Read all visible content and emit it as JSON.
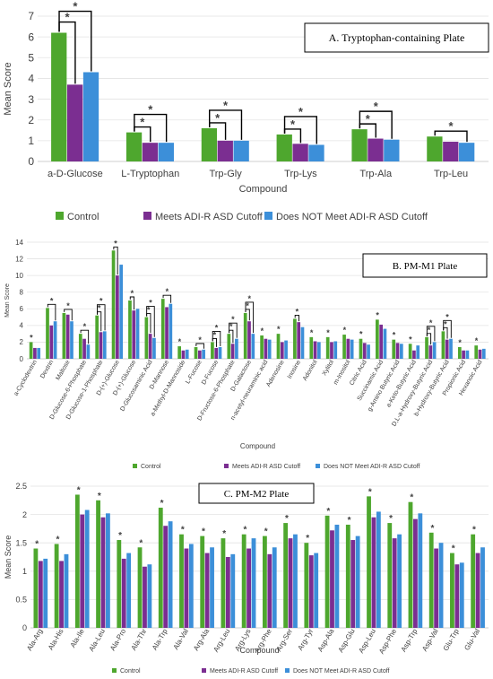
{
  "colors": {
    "control": "#4EA72E",
    "meets": "#7B2E91",
    "not_meets": "#3C8FD9"
  },
  "chart_data": [
    {
      "type": "bar",
      "title": "A.   Tryptophan-containing Plate",
      "xlabel": "Compound",
      "ylabel": "Mean Score",
      "ylim": [
        0,
        7
      ],
      "yticks": [
        "0",
        "1",
        "2",
        "3",
        "4",
        "5",
        "6",
        "7"
      ],
      "grid": true,
      "legend": "bottom",
      "categories": [
        "a-D-Glucose",
        "L-Tryptophan",
        "Trp-Gly",
        "Trp-Lys",
        "Trp-Ala",
        "Trp-Leu"
      ],
      "series": [
        {
          "name": "Control",
          "values": [
            6.2,
            1.4,
            1.6,
            1.3,
            1.55,
            1.2
          ]
        },
        {
          "name": "Meets ADI-R ASD Cutoff",
          "values": [
            3.7,
            0.9,
            1.0,
            0.85,
            1.1,
            0.95
          ]
        },
        {
          "name": "Does NOT Meet ADI-R ASD Cutoff",
          "values": [
            4.3,
            0.9,
            1.0,
            0.8,
            1.05,
            0.9
          ]
        }
      ],
      "annotations": [
        "*",
        "*",
        "*",
        "*",
        "*",
        "*",
        "*",
        "*",
        "*",
        "*",
        "*"
      ]
    },
    {
      "type": "bar",
      "title": "B. PM-M1 Plate",
      "xlabel": "Compound",
      "ylabel": "Mean Score",
      "ylim": [
        0,
        14
      ],
      "yticks": [
        "0",
        "2",
        "4",
        "6",
        "8",
        "10",
        "12",
        "14"
      ],
      "grid": true,
      "legend": "bottom",
      "categories": [
        "a-Cyclodextrin",
        "Dextrin",
        "Maltose",
        "D-Glucose-6-Phosphate",
        "D-Glucose-1-Phosphate",
        "D-(+)-Glucose",
        "D-(+)-Glucose",
        "D-Glucosaminic Acid",
        "D-Mannose",
        "a-Methyl-D-Mannoside",
        "L-Fucose",
        "D-Fucose",
        "D-Fructose-6-Phosphate",
        "D-Galactose",
        "n-acetyl-neuraminic acid",
        "Adenosine",
        "Inosine",
        "Adonitol",
        "Xylitol",
        "m-Inositol",
        "Citric Acid",
        "Succinamic Acid",
        "g-Amino Butyric Acid",
        "a-Keto-Butyric Acid",
        "D,L-a-Hydroxy-Butyric Acid",
        "b-Hydroxy-Butyric Acid",
        "Propionic Acid",
        "Hexanoic Acid"
      ],
      "series": [
        {
          "name": "Control",
          "values": [
            2.0,
            6.1,
            5.5,
            3.0,
            5.2,
            13.0,
            7.0,
            5.0,
            7.2,
            1.5,
            1.4,
            2.0,
            3.0,
            5.5,
            2.8,
            3.0,
            4.8,
            2.6,
            2.6,
            2.9,
            2.4,
            4.7,
            2.3,
            1.8,
            2.6,
            3.3,
            1.4,
            1.6
          ]
        },
        {
          "name": "Meets ADI-R ASD Cutoff",
          "values": [
            1.3,
            4.0,
            5.3,
            2.4,
            3.2,
            10.0,
            5.8,
            3.0,
            6.2,
            1.0,
            1.0,
            1.3,
            1.8,
            4.5,
            2.4,
            2.0,
            4.4,
            2.1,
            2.0,
            2.4,
            1.9,
            4.1,
            1.9,
            1.0,
            1.6,
            2.3,
            1.0,
            1.1
          ]
        },
        {
          "name": "Does NOT Meet ADI-R ASD Cutoff",
          "values": [
            1.3,
            4.5,
            4.5,
            1.7,
            3.3,
            11.3,
            6.0,
            2.5,
            6.6,
            1.1,
            1.1,
            1.4,
            2.4,
            3.0,
            2.3,
            2.2,
            3.8,
            2.0,
            2.1,
            2.3,
            1.7,
            3.6,
            1.8,
            1.6,
            2.0,
            2.4,
            1.0,
            1.2
          ]
        }
      ],
      "annotations": [
        "*",
        "*",
        "*",
        "*",
        "*",
        "*",
        "*",
        "*",
        "*",
        "*",
        "*",
        "*",
        "*",
        "*",
        "*",
        "*",
        "*",
        "*",
        "*",
        "*",
        "*",
        "*",
        "*",
        "*",
        "*",
        "*",
        "*",
        "*",
        "*",
        "*",
        "*",
        "*",
        "*",
        "*",
        "*"
      ]
    },
    {
      "type": "bar",
      "title": "C. PM-M2 Plate",
      "xlabel": "Compound",
      "ylabel": "Mean Score",
      "ylim": [
        0,
        2.5
      ],
      "yticks": [
        "0",
        "0.5",
        "1",
        "1.5",
        "2",
        "2.5"
      ],
      "grid": true,
      "legend": "bottom",
      "categories": [
        "Ala-Arg",
        "Ala-His",
        "Ala-Ile",
        "Ala-Leu",
        "Ala-Pro",
        "Ala-Thr",
        "Ala-Trp",
        "Ala-Val",
        "Arg-Ala",
        "Arg-Leu",
        "Arg-Lys",
        "Arg-Phe",
        "Arg-Ser",
        "Arg-Tyr",
        "Asp-Ala",
        "Asp-Glu",
        "Asp-Leu",
        "Asp-Phe",
        "Asp-Trp",
        "Asp-Val",
        "Glu-Trp",
        "Glu-Val"
      ],
      "series": [
        {
          "name": "Control",
          "values": [
            1.4,
            1.48,
            2.35,
            2.25,
            1.55,
            1.42,
            2.12,
            1.65,
            1.62,
            1.58,
            1.65,
            1.62,
            1.85,
            1.5,
            1.98,
            1.82,
            2.32,
            1.85,
            2.22,
            1.68,
            1.32,
            1.65
          ]
        },
        {
          "name": "Meets ADI-R ASD Cutoff",
          "values": [
            1.18,
            1.18,
            2.0,
            1.95,
            1.22,
            1.08,
            1.8,
            1.4,
            1.32,
            1.25,
            1.4,
            1.3,
            1.58,
            1.28,
            1.72,
            1.55,
            1.95,
            1.58,
            1.92,
            1.4,
            1.12,
            1.32
          ]
        },
        {
          "name": "Does NOT Meet ADI-R ASD Cutoff",
          "values": [
            1.22,
            1.3,
            2.08,
            2.02,
            1.32,
            1.12,
            1.88,
            1.48,
            1.42,
            1.3,
            1.58,
            1.42,
            1.65,
            1.32,
            1.82,
            1.62,
            2.05,
            1.65,
            2.02,
            1.5,
            1.15,
            1.42
          ]
        }
      ],
      "annotations": [
        "*",
        "*",
        "*",
        "*",
        "*",
        "*",
        "*",
        "*",
        "*",
        "*",
        "*",
        "*",
        "*",
        "*",
        "*",
        "*",
        "*",
        "*",
        "*",
        "*",
        "*",
        "*"
      ]
    }
  ]
}
